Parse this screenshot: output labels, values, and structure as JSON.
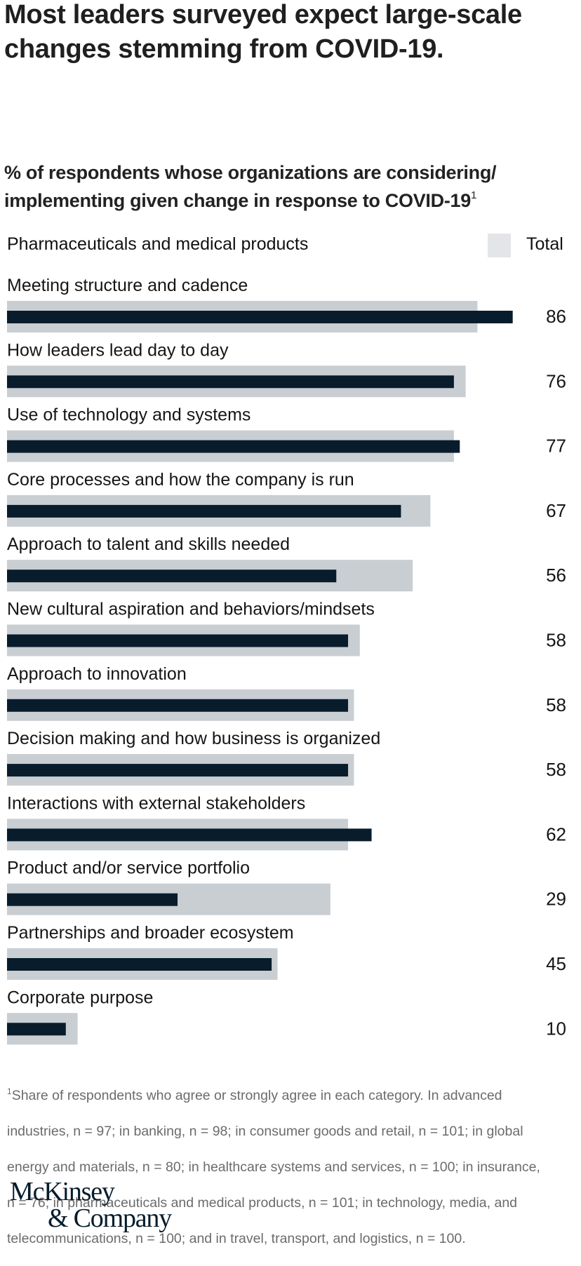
{
  "title": "Most leaders surveyed expect large-scale changes stemming from COVID-19.",
  "subtitle": {
    "text": "% of respondents whose organizations are considering/ implementing given change in response to COVID-19",
    "footnote_marker": "1"
  },
  "colors": {
    "segment": "#081c2c",
    "total": "#c9ced3",
    "legend_swatch": "#e3e5e8",
    "logo": "#051c2c"
  },
  "chart_data": {
    "type": "bar",
    "orientation": "horizontal",
    "title": "% of respondents whose organizations are considering/implementing given change in response to COVID-19",
    "xlabel": "",
    "ylabel": "",
    "xlim": [
      0,
      100
    ],
    "grid": false,
    "legend": {
      "placement": "top-right",
      "entries": [
        "Pharmaceuticals and medical products",
        "Total"
      ]
    },
    "categories": [
      "Meeting structure and cadence",
      "How leaders lead day to day",
      "Use of technology and systems",
      "Core processes and how the company is run",
      "Approach to talent and skills needed",
      "New cultural aspiration and behaviors/mindsets",
      "Approach to innovation",
      "Decision making and how business is organized",
      "Interactions with external stakeholders",
      "Product and/or service portfolio",
      "Partnerships and broader ecosystem",
      "Corporate purpose"
    ],
    "series": [
      {
        "name": "Pharmaceuticals and medical products",
        "values": [
          86,
          76,
          77,
          67,
          56,
          58,
          58,
          58,
          62,
          29,
          45,
          10
        ],
        "labeled": true
      },
      {
        "name": "Total",
        "values": [
          80,
          78,
          76,
          72,
          69,
          60,
          59,
          59,
          58,
          55,
          46,
          12
        ],
        "labeled": false,
        "estimated": true
      }
    ]
  },
  "footnote": {
    "marker": "1",
    "lines": [
      "Share of respondents who agree or strongly agree in each category. In advanced",
      "industries, n = 97; in banking, n = 98; in consumer goods and retail, n = 101; in global",
      "energy and materials, n = 80; in healthcare systems and services, n = 100; in insurance,",
      "n = 76; in pharmaceuticals and medical products, n = 101; in technology, media, and",
      "telecommunications, n = 100; and in travel, transport, and logistics, n = 100."
    ]
  },
  "logo": {
    "line1": "McKinsey",
    "line2": "& Company"
  }
}
